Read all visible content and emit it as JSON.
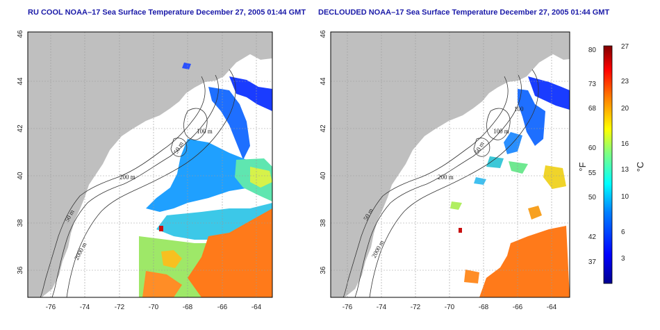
{
  "panels": [
    {
      "title": "RU COOL NOAA–17 Sea Surface Temperature December 27, 2005 01:44 GMT",
      "contour_labels": [
        "100 m",
        "50 m",
        "200 m",
        "50 m",
        "2000 m"
      ]
    },
    {
      "title": "DECLOUDED NOAA–17 Sea Surface Temperature December 27, 2005 01:44 GMT",
      "contour_labels": [
        "100",
        "100 m",
        "50 m",
        "200 m",
        "50 m",
        "2000 m"
      ]
    }
  ],
  "axes": {
    "lon_ticks": [
      "-76",
      "-74",
      "-72",
      "-70",
      "-68",
      "-66",
      "-64"
    ],
    "lat_ticks": [
      "46",
      "44",
      "42",
      "40",
      "38",
      "36"
    ]
  },
  "colorbar": {
    "fahrenheit_label": "°F",
    "celsius_label": "°C",
    "fahrenheit_ticks": [
      "80",
      "73",
      "68",
      "60",
      "55",
      "50",
      "42",
      "37"
    ],
    "celsius_ticks": [
      "27",
      "23",
      "20",
      "16",
      "13",
      "10",
      "6",
      "3"
    ],
    "colors": [
      "#00008f",
      "#0000ff",
      "#0080ff",
      "#00ffff",
      "#80ff80",
      "#ffff00",
      "#ff8000",
      "#ff0000",
      "#800000"
    ]
  },
  "colors": {
    "land": "#bfbfbf",
    "title": "#1a1aa8",
    "grid": "#999999"
  }
}
